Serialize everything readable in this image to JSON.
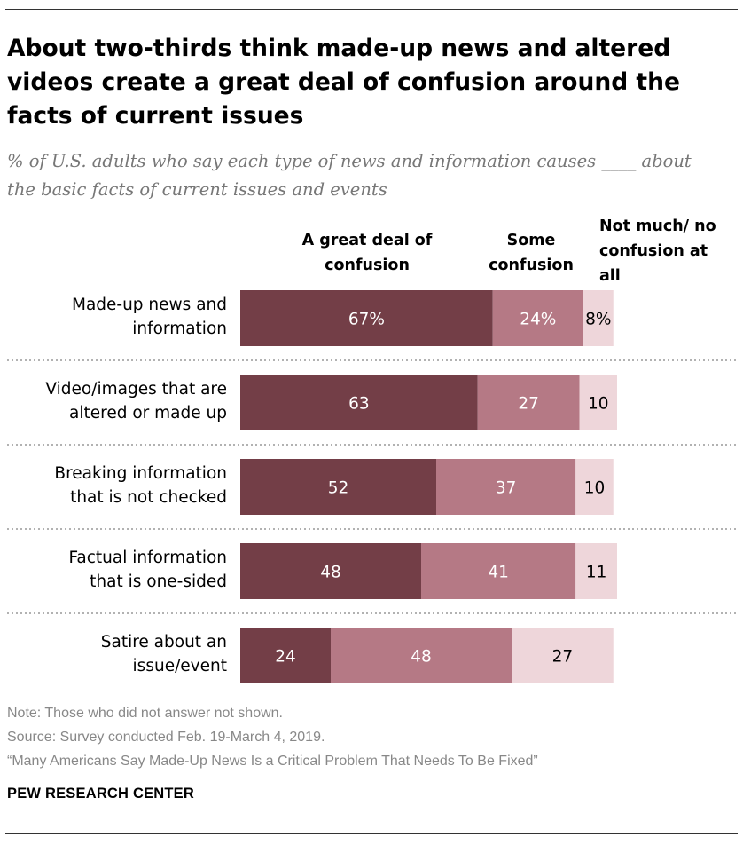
{
  "title": "About two-thirds think made-up news and altered videos create a great deal of confusion around the facts of current issues",
  "subtitle": "% of U.S. adults who say each type of news and information causes ____ about the basic facts of current issues and events",
  "column_headers": {
    "great": "A great deal of confusion",
    "some": "Some confusion",
    "none": "Not much/ no confusion at all"
  },
  "colors": {
    "great": "#733e47",
    "some": "#b57985",
    "none": "#eed6da",
    "text_light": "#ffffff",
    "text_dark": "#000000"
  },
  "chart_data": {
    "type": "bar",
    "orientation": "horizontal",
    "stacked": true,
    "categories": [
      "Made-up news and information",
      "Video/images that are altered or made up",
      "Breaking information that is not checked",
      "Factual information that is one-sided",
      "Satire about an issue/event"
    ],
    "category_lines": [
      [
        "Made-up news and",
        "information"
      ],
      [
        "Video/images that are",
        "altered or made up"
      ],
      [
        "Breaking information",
        "that is not checked"
      ],
      [
        "Factual information",
        "that is one-sided"
      ],
      [
        "Satire about an",
        "issue/event"
      ]
    ],
    "series": [
      {
        "name": "A great deal of confusion",
        "values": [
          67,
          63,
          52,
          48,
          24
        ],
        "labels": [
          "67%",
          "63",
          "52",
          "48",
          "24"
        ]
      },
      {
        "name": "Some confusion",
        "values": [
          24,
          27,
          37,
          41,
          48
        ],
        "labels": [
          "24%",
          "27",
          "37",
          "41",
          "48"
        ]
      },
      {
        "name": "Not much/ no confusion at all",
        "values": [
          8,
          10,
          10,
          11,
          27
        ],
        "labels": [
          "8%",
          "10",
          "10",
          "11",
          "27"
        ]
      }
    ],
    "xlim": [
      0,
      100
    ]
  },
  "footer": {
    "note": "Note: Those who did not answer not shown.",
    "source": "Source: Survey conducted Feb. 19-March 4, 2019.",
    "report": "“Many Americans Say Made-Up News Is a Critical Problem That Needs To Be Fixed”",
    "brand": "PEW RESEARCH CENTER"
  }
}
